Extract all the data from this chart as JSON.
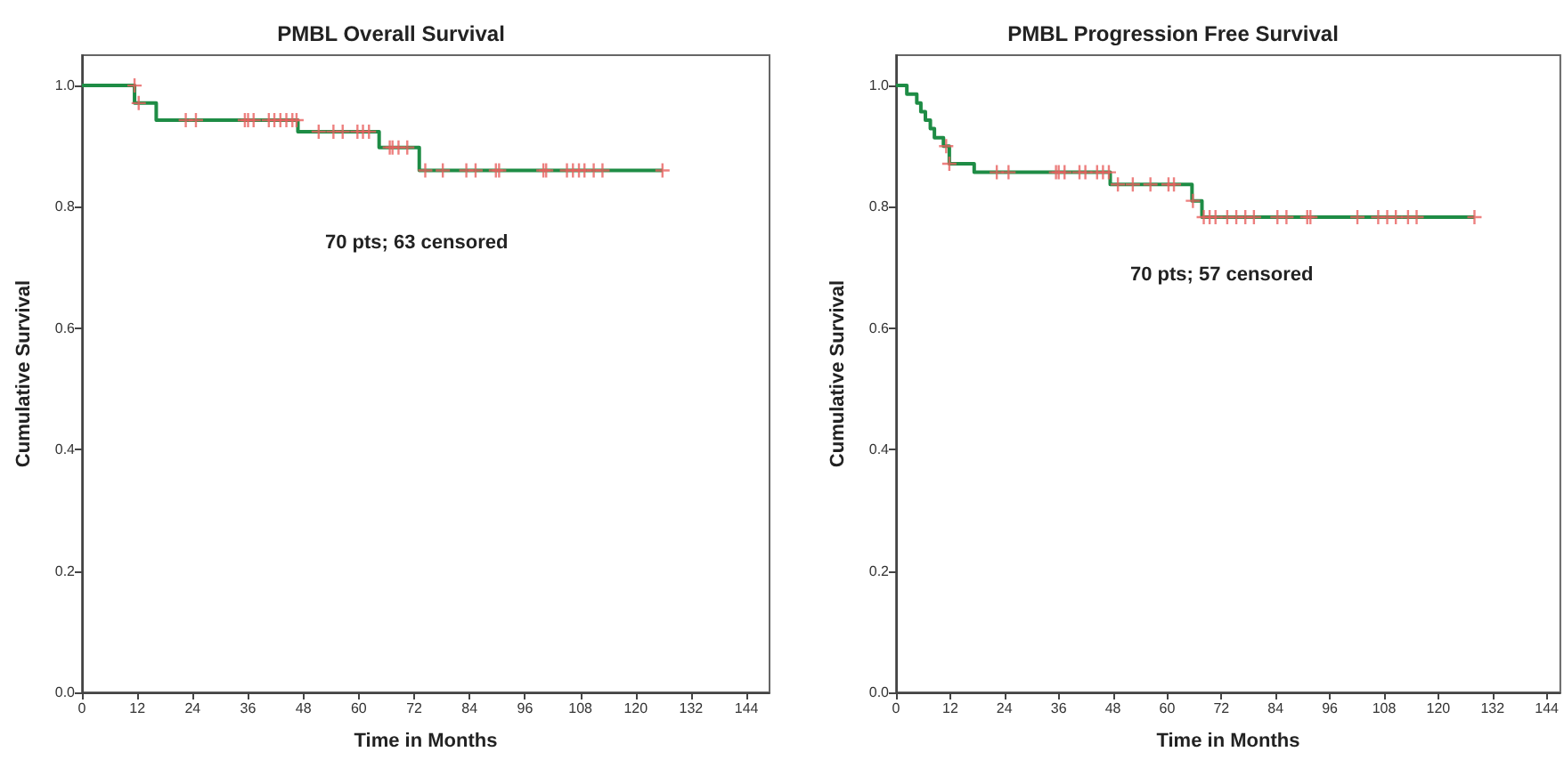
{
  "chart_data": [
    {
      "type": "step",
      "title": "PMBL Overall Survival",
      "xlabel": "Time in Months",
      "ylabel": "Cumulative Survival",
      "annotations": [
        "70 pts; 63 censored"
      ],
      "xlim": [
        0,
        149
      ],
      "xticks": [
        0,
        12,
        24,
        36,
        48,
        60,
        72,
        84,
        96,
        108,
        120,
        132,
        144
      ],
      "ylim": [
        0,
        1.05
      ],
      "yticks": [
        {
          "value": 0,
          "label": "0.0"
        },
        {
          "value": 0.2,
          "label": "0.2"
        },
        {
          "value": 0.4,
          "label": "0.4"
        },
        {
          "value": 0.6,
          "label": "0.6"
        },
        {
          "value": 0.8,
          "label": "0.8"
        },
        {
          "value": 1,
          "label": "1.0"
        }
      ],
      "grid": false,
      "series": [
        {
          "type": "step",
          "color": "#1e8c45",
          "line_style": "solid",
          "marker": "none",
          "x": [
            0,
            11.4,
            16.1,
            46.8,
            64.4,
            73.1,
            125.8
          ],
          "values": [
            1,
            0.971,
            0.943,
            0.924,
            0.898,
            0.86,
            0.86
          ]
        },
        {
          "type": "scatter",
          "color": "#e8605f",
          "marker": "cross",
          "x": [
            11.4,
            12.3,
            22.5,
            24.7,
            35.3,
            36.0,
            37.2,
            40.5,
            41.7,
            43.0,
            44.3,
            45.6,
            46.5,
            51.3,
            54.5,
            56.5,
            59.7,
            60.9,
            62.2,
            66.7,
            67.3,
            68.6,
            70.5,
            74.4,
            78.2,
            83.3,
            85.3,
            89.7,
            90.4,
            100.0,
            100.6,
            105.1,
            106.4,
            107.7,
            108.9,
            110.9,
            112.8,
            125.8
          ],
          "values": [
            1,
            0.971,
            0.943,
            0.943,
            0.943,
            0.943,
            0.943,
            0.943,
            0.943,
            0.943,
            0.943,
            0.943,
            0.943,
            0.924,
            0.924,
            0.924,
            0.924,
            0.924,
            0.924,
            0.898,
            0.898,
            0.898,
            0.898,
            0.86,
            0.86,
            0.86,
            0.86,
            0.86,
            0.86,
            0.86,
            0.86,
            0.86,
            0.86,
            0.86,
            0.86,
            0.86,
            0.86,
            0.86
          ]
        }
      ]
    },
    {
      "type": "step",
      "title": "PMBL Progression Free Survival",
      "xlabel": "Time in Months",
      "ylabel": "Cumulative Survival",
      "annotations": [
        "70 pts; 57 censored"
      ],
      "xlim": [
        0,
        147
      ],
      "xticks": [
        0,
        12,
        24,
        36,
        48,
        60,
        72,
        84,
        96,
        108,
        120,
        132,
        144
      ],
      "ylim": [
        0,
        1.05
      ],
      "yticks": [
        {
          "value": 0,
          "label": "0.0"
        },
        {
          "value": 0.2,
          "label": "0.2"
        },
        {
          "value": 0.4,
          "label": "0.4"
        },
        {
          "value": 0.6,
          "label": "0.6"
        },
        {
          "value": 0.8,
          "label": "0.8"
        },
        {
          "value": 1,
          "label": "1.0"
        }
      ],
      "grid": false,
      "series": [
        {
          "type": "step",
          "color": "#1e8c45",
          "line_style": "solid",
          "marker": "none",
          "x": [
            0,
            2.4,
            4.6,
            5.5,
            6.5,
            7.6,
            8.5,
            10.5,
            11.8,
            17.3,
            47.4,
            65.5,
            67.7,
            128.0
          ],
          "values": [
            1,
            0.986,
            0.971,
            0.957,
            0.943,
            0.929,
            0.914,
            0.9,
            0.871,
            0.857,
            0.837,
            0.81,
            0.783,
            0.783
          ]
        },
        {
          "type": "scatter",
          "color": "#e8605f",
          "marker": "cross",
          "x": [
            11.1,
            11.8,
            22.3,
            24.9,
            35.4,
            36.0,
            37.3,
            40.6,
            41.9,
            44.5,
            45.8,
            47.1,
            49.1,
            52.4,
            56.3,
            60.3,
            61.5,
            65.7,
            68.1,
            69.4,
            70.7,
            73.3,
            75.3,
            77.3,
            79.2,
            84.4,
            86.4,
            91.0,
            91.7,
            102.1,
            106.7,
            108.7,
            110.6,
            113.3,
            115.2,
            128.0
          ],
          "values": [
            0.9,
            0.871,
            0.857,
            0.857,
            0.857,
            0.857,
            0.857,
            0.857,
            0.857,
            0.857,
            0.857,
            0.857,
            0.837,
            0.837,
            0.837,
            0.837,
            0.837,
            0.81,
            0.783,
            0.783,
            0.783,
            0.783,
            0.783,
            0.783,
            0.783,
            0.783,
            0.783,
            0.783,
            0.783,
            0.783,
            0.783,
            0.783,
            0.783,
            0.783,
            0.783,
            0.783
          ]
        }
      ]
    }
  ]
}
